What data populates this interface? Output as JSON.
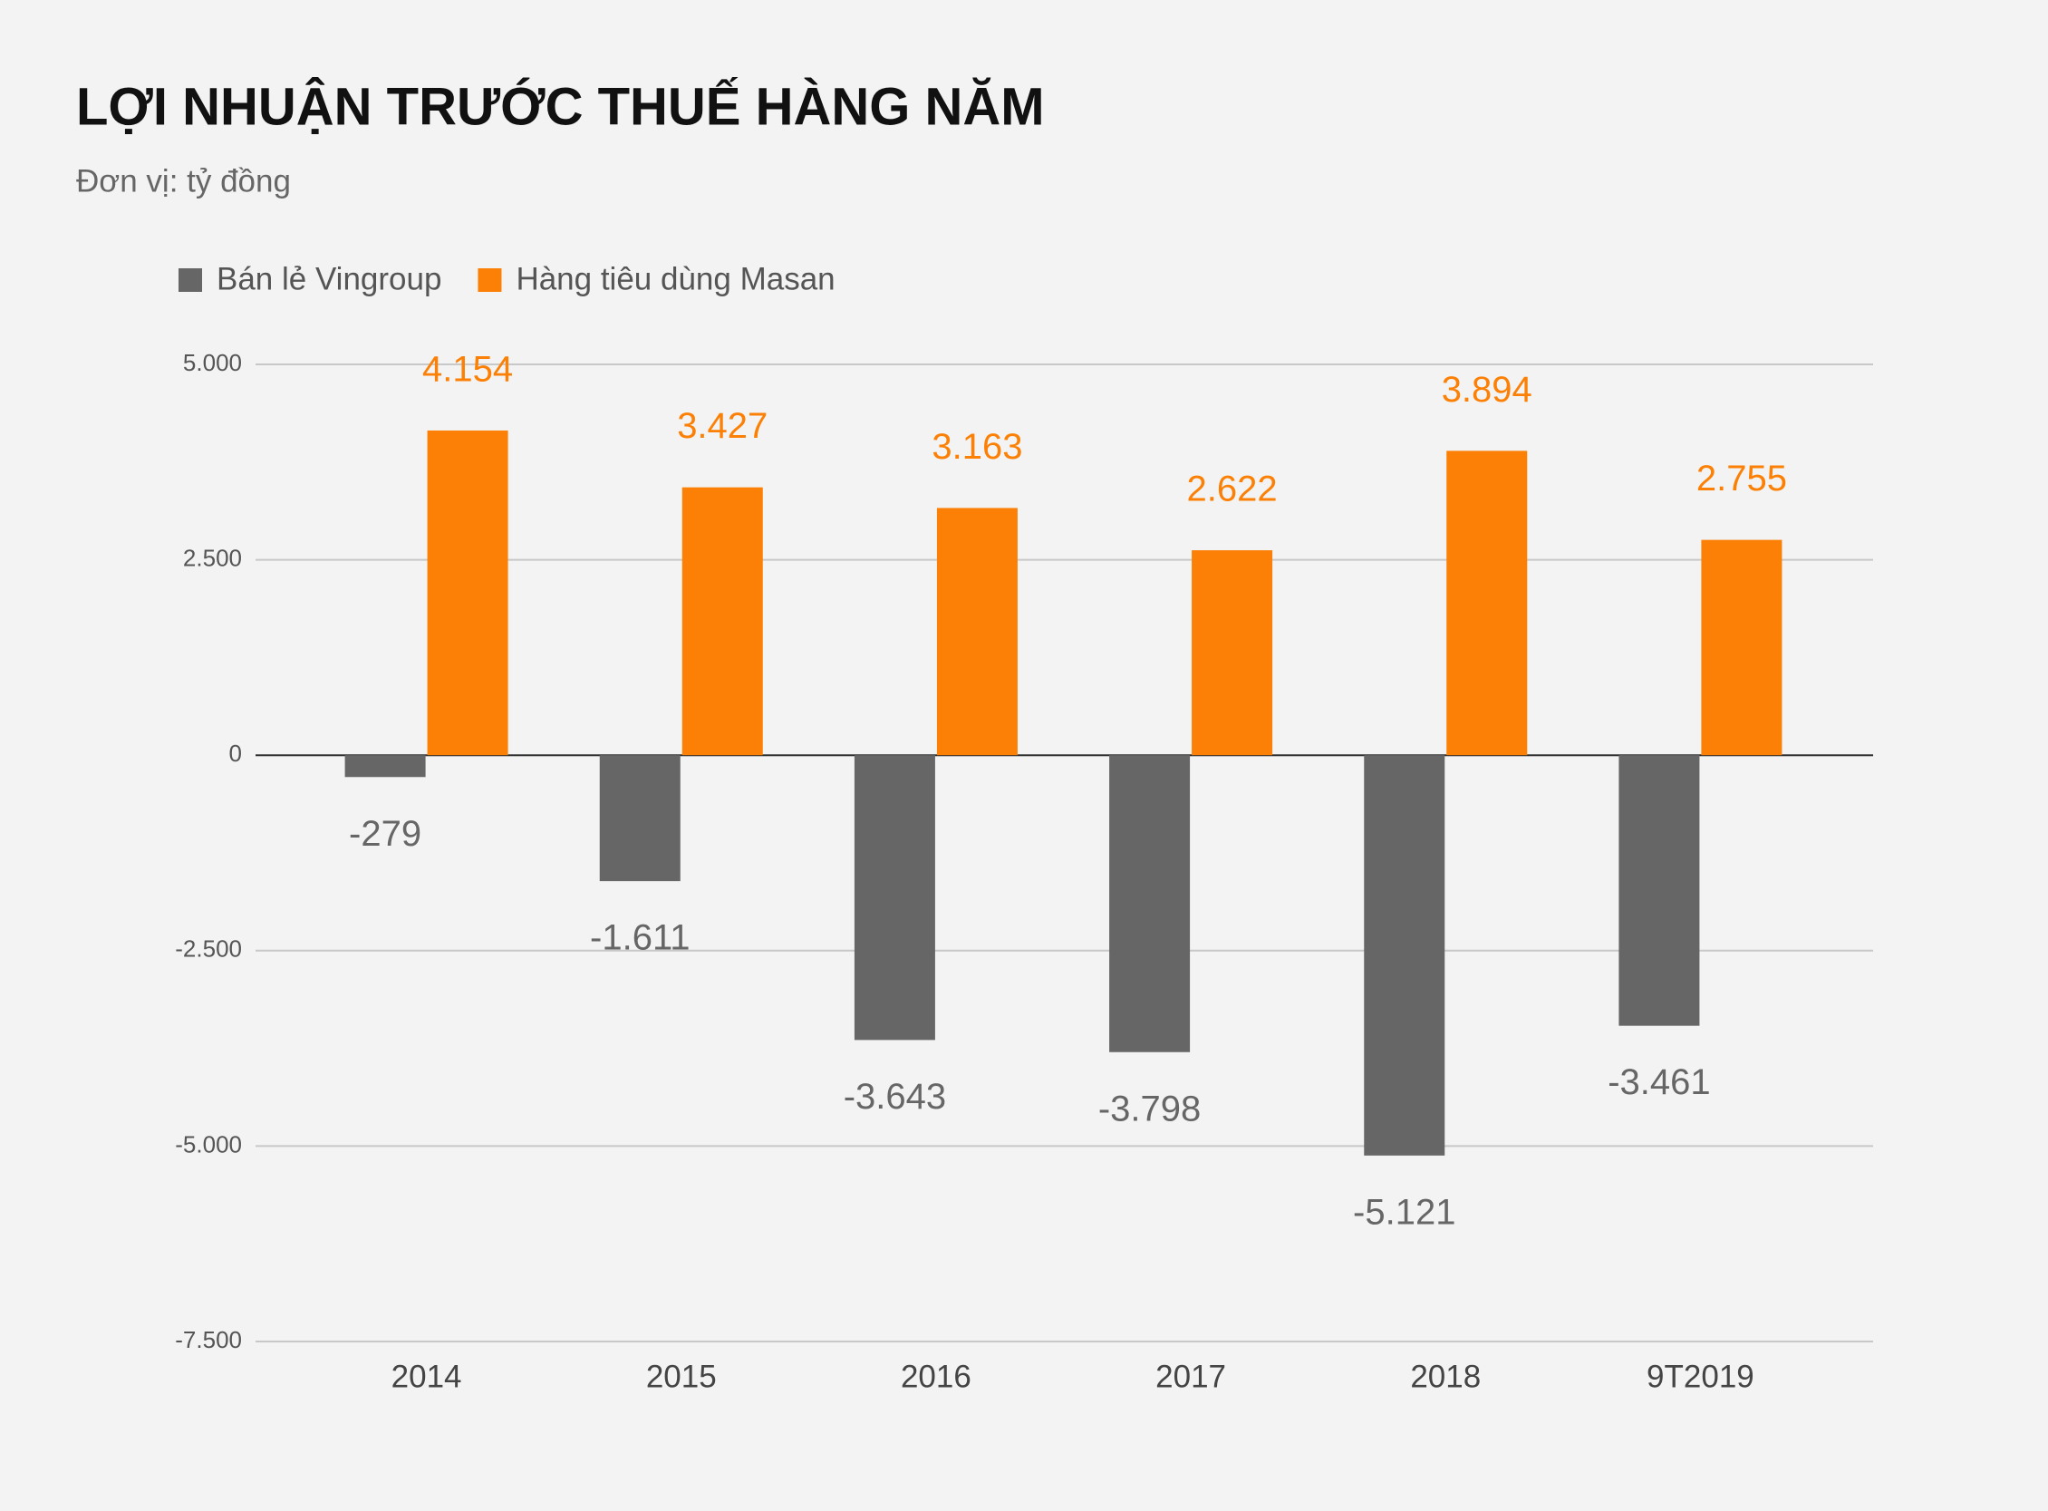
{
  "chart_data": {
    "type": "bar",
    "title": "LỢI NHUẬN TRƯỚC THUẾ HÀNG NĂM",
    "subtitle": "Đơn vị: tỷ đồng",
    "categories": [
      "2014",
      "2015",
      "2016",
      "2017",
      "2018",
      "9T2019"
    ],
    "series": [
      {
        "name": "Bán lẻ Vingroup",
        "color": "#666666",
        "values": [
          -279,
          -1611,
          -3643,
          -3798,
          -5121,
          -3461
        ],
        "value_labels": [
          "-279",
          "-1.611",
          "-3.643",
          "-3.798",
          "-5.121",
          "-3.461"
        ]
      },
      {
        "name": "Hàng tiêu dùng Masan",
        "color": "#fb8005",
        "values": [
          4154,
          3427,
          3163,
          2622,
          3894,
          2755
        ],
        "value_labels": [
          "4.154",
          "3.427",
          "3.163",
          "2.622",
          "3.894",
          "2.755"
        ]
      }
    ],
    "ylim": [
      -7500,
      5000
    ],
    "yticks": [
      {
        "value": 5000,
        "label": "5.000"
      },
      {
        "value": 2500,
        "label": "2.500"
      },
      0,
      {
        "value": -2500,
        "label": "-2.500"
      },
      {
        "value": -5000,
        "label": "-5.000"
      },
      {
        "value": -7500,
        "label": "-7.500"
      }
    ],
    "grid": true,
    "legend": "top"
  }
}
